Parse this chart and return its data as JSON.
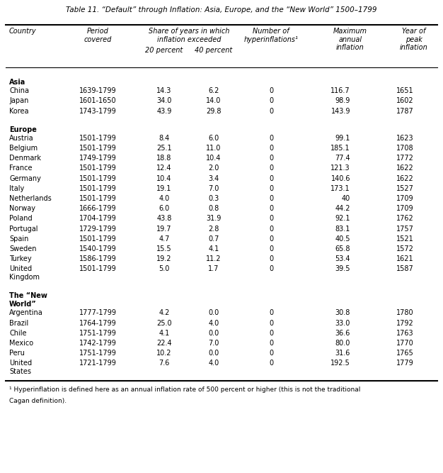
{
  "title": "Table 11. “Default” through Inflation: Asia, Europe, and the “New World” 1500–1799",
  "footnote": "¹ Hyperinflation is defined here as an annual inflation rate of 500 percent or higher (this is not the traditional Cagan definition).",
  "sections": [
    {
      "name": "Asia",
      "rows": [
        [
          "China",
          "1639-1799",
          "14.3",
          "6.2",
          "0",
          "116.7",
          "1651"
        ],
        [
          "Japan",
          "1601-1650",
          "34.0",
          "14.0",
          "0",
          "98.9",
          "1602"
        ],
        [
          "Korea",
          "1743-1799",
          "43.9",
          "29.8",
          "0",
          "143.9",
          "1787"
        ]
      ]
    },
    {
      "name": "Europe",
      "rows": [
        [
          "Austria",
          "1501-1799",
          "8.4",
          "6.0",
          "0",
          "99.1",
          "1623"
        ],
        [
          "Belgium",
          "1501-1799",
          "25.1",
          "11.0",
          "0",
          "185.1",
          "1708"
        ],
        [
          "Denmark",
          "1749-1799",
          "18.8",
          "10.4",
          "0",
          "77.4",
          "1772"
        ],
        [
          "France",
          "1501-1799",
          "12.4",
          "2.0",
          "0",
          "121.3",
          "1622"
        ],
        [
          "Germany",
          "1501-1799",
          "10.4",
          "3.4",
          "0",
          "140.6",
          "1622"
        ],
        [
          "Italy",
          "1501-1799",
          "19.1",
          "7.0",
          "0",
          "173.1",
          "1527"
        ],
        [
          "Netherlands",
          "1501-1799",
          "4.0",
          "0.3",
          "0",
          "40",
          "1709"
        ],
        [
          "Norway",
          "1666-1799",
          "6.0",
          "0.8",
          "0",
          "44.2",
          "1709"
        ],
        [
          "Poland",
          "1704-1799",
          "43.8",
          "31.9",
          "0",
          "92.1",
          "1762"
        ],
        [
          "Portugal",
          "1729-1799",
          "19.7",
          "2.8",
          "0",
          "83.1",
          "1757"
        ],
        [
          "Spain",
          "1501-1799",
          "4.7",
          "0.7",
          "0",
          "40.5",
          "1521"
        ],
        [
          "Sweden",
          "1540-1799",
          "15.5",
          "4.1",
          "0",
          "65.8",
          "1572"
        ],
        [
          "Turkey",
          "1586-1799",
          "19.2",
          "11.2",
          "0",
          "53.4",
          "1621"
        ],
        [
          "United\nKingdom",
          "1501-1799",
          "5.0",
          "1.7",
          "0",
          "39.5",
          "1587"
        ]
      ]
    },
    {
      "name": "The “New\nWorld”",
      "rows": [
        [
          "Argentina",
          "1777-1799",
          "4.2",
          "0.0",
          "0",
          "30.8",
          "1780"
        ],
        [
          "Brazil",
          "1764-1799",
          "25.0",
          "4.0",
          "0",
          "33.0",
          "1792"
        ],
        [
          "Chile",
          "1751-1799",
          "4.1",
          "0.0",
          "0",
          "36.6",
          "1763"
        ],
        [
          "Mexico",
          "1742-1799",
          "22.4",
          "7.0",
          "0",
          "80.0",
          "1770"
        ],
        [
          "Peru",
          "1751-1799",
          "10.2",
          "0.0",
          "0",
          "31.6",
          "1765"
        ],
        [
          "United\nStates",
          "1721-1799",
          "7.6",
          "4.0",
          "0",
          "192.5",
          "1779"
        ]
      ]
    }
  ]
}
